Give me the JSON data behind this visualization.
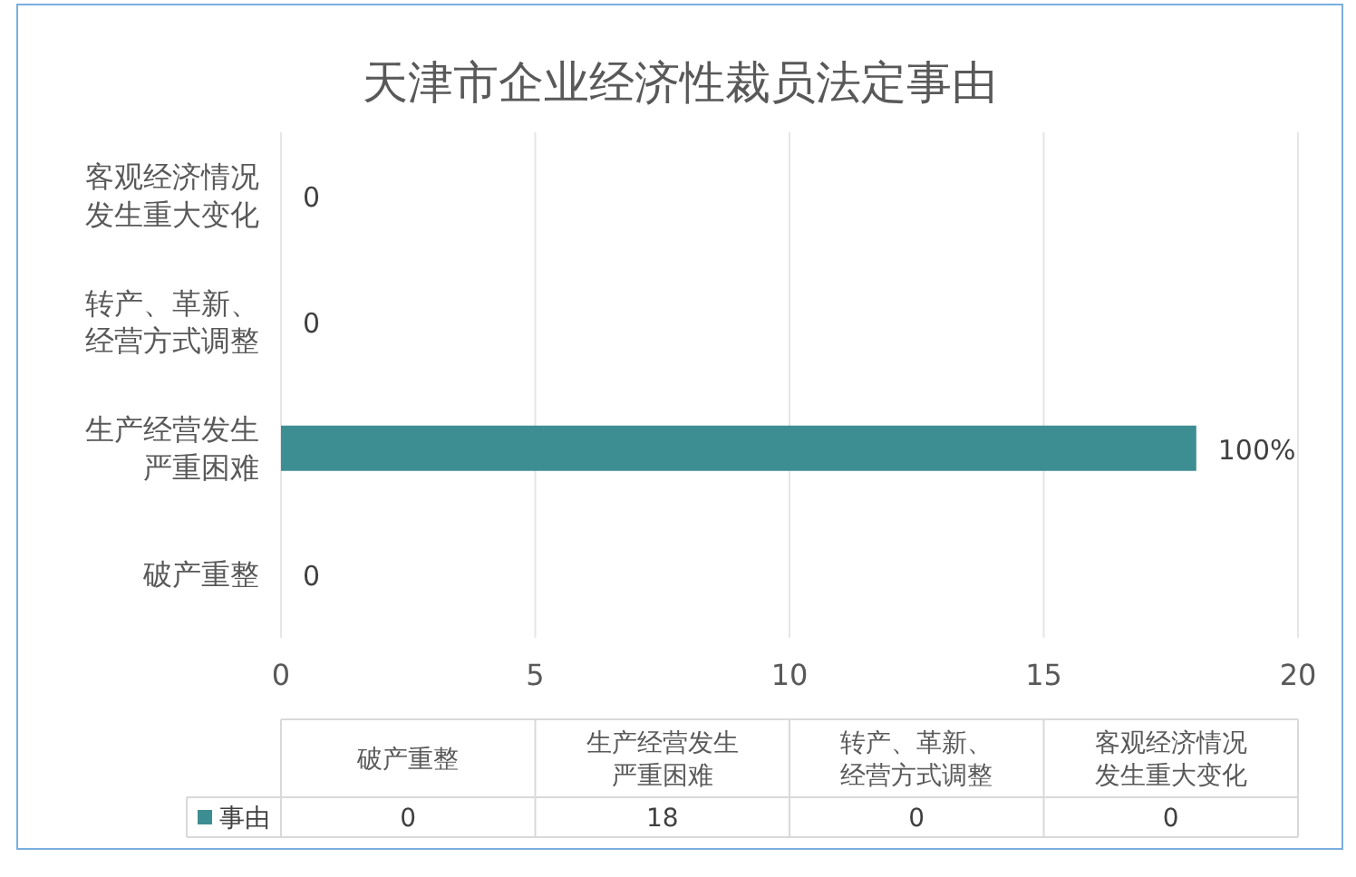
{
  "chart_data": [
    {
      "type": "bar",
      "orientation": "horizontal",
      "title": "天津市企业经济性裁员法定事由",
      "categories": [
        "客观经济情况发生重大变化",
        "转产、革新、经营方式调整",
        "生产经营发生严重困难",
        "破产重整"
      ],
      "series": [
        {
          "color": "#3d8e93",
          "values": [
            0,
            0,
            18,
            0
          ],
          "value_labels": [
            "0",
            "0",
            null,
            "0"
          ]
        }
      ],
      "annotations": [
        {
          "text": "100%",
          "x": 18,
          "y": "生产经营发生严重困难"
        }
      ],
      "xlim": [
        0,
        20
      ],
      "xticks": [
        0,
        5,
        10,
        15,
        20
      ],
      "grid": "x"
    },
    {
      "type": "other",
      "categories": [
        "破产重整",
        "生产经营发生严重困难",
        "转产、革新、经营方式调整",
        "客观经济情况发生重大变化"
      ],
      "series": [
        {
          "name": "事由",
          "color": "#3d8e93",
          "values": [
            0,
            18,
            0,
            0
          ]
        }
      ],
      "data_labels": true,
      "legend": "left"
    }
  ]
}
